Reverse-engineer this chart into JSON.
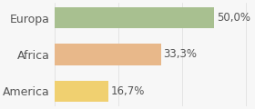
{
  "categories": [
    "America",
    "Africa",
    "Europa"
  ],
  "values": [
    16.7,
    33.3,
    50.0
  ],
  "labels": [
    "16,7%",
    "33,3%",
    "50,0%"
  ],
  "bar_colors": [
    "#f0d070",
    "#e8b88a",
    "#a8c090"
  ],
  "background_color": "#f7f7f7",
  "xlim": [
    0,
    62
  ],
  "bar_height": 0.58,
  "label_fontsize": 8.5,
  "tick_fontsize": 9
}
